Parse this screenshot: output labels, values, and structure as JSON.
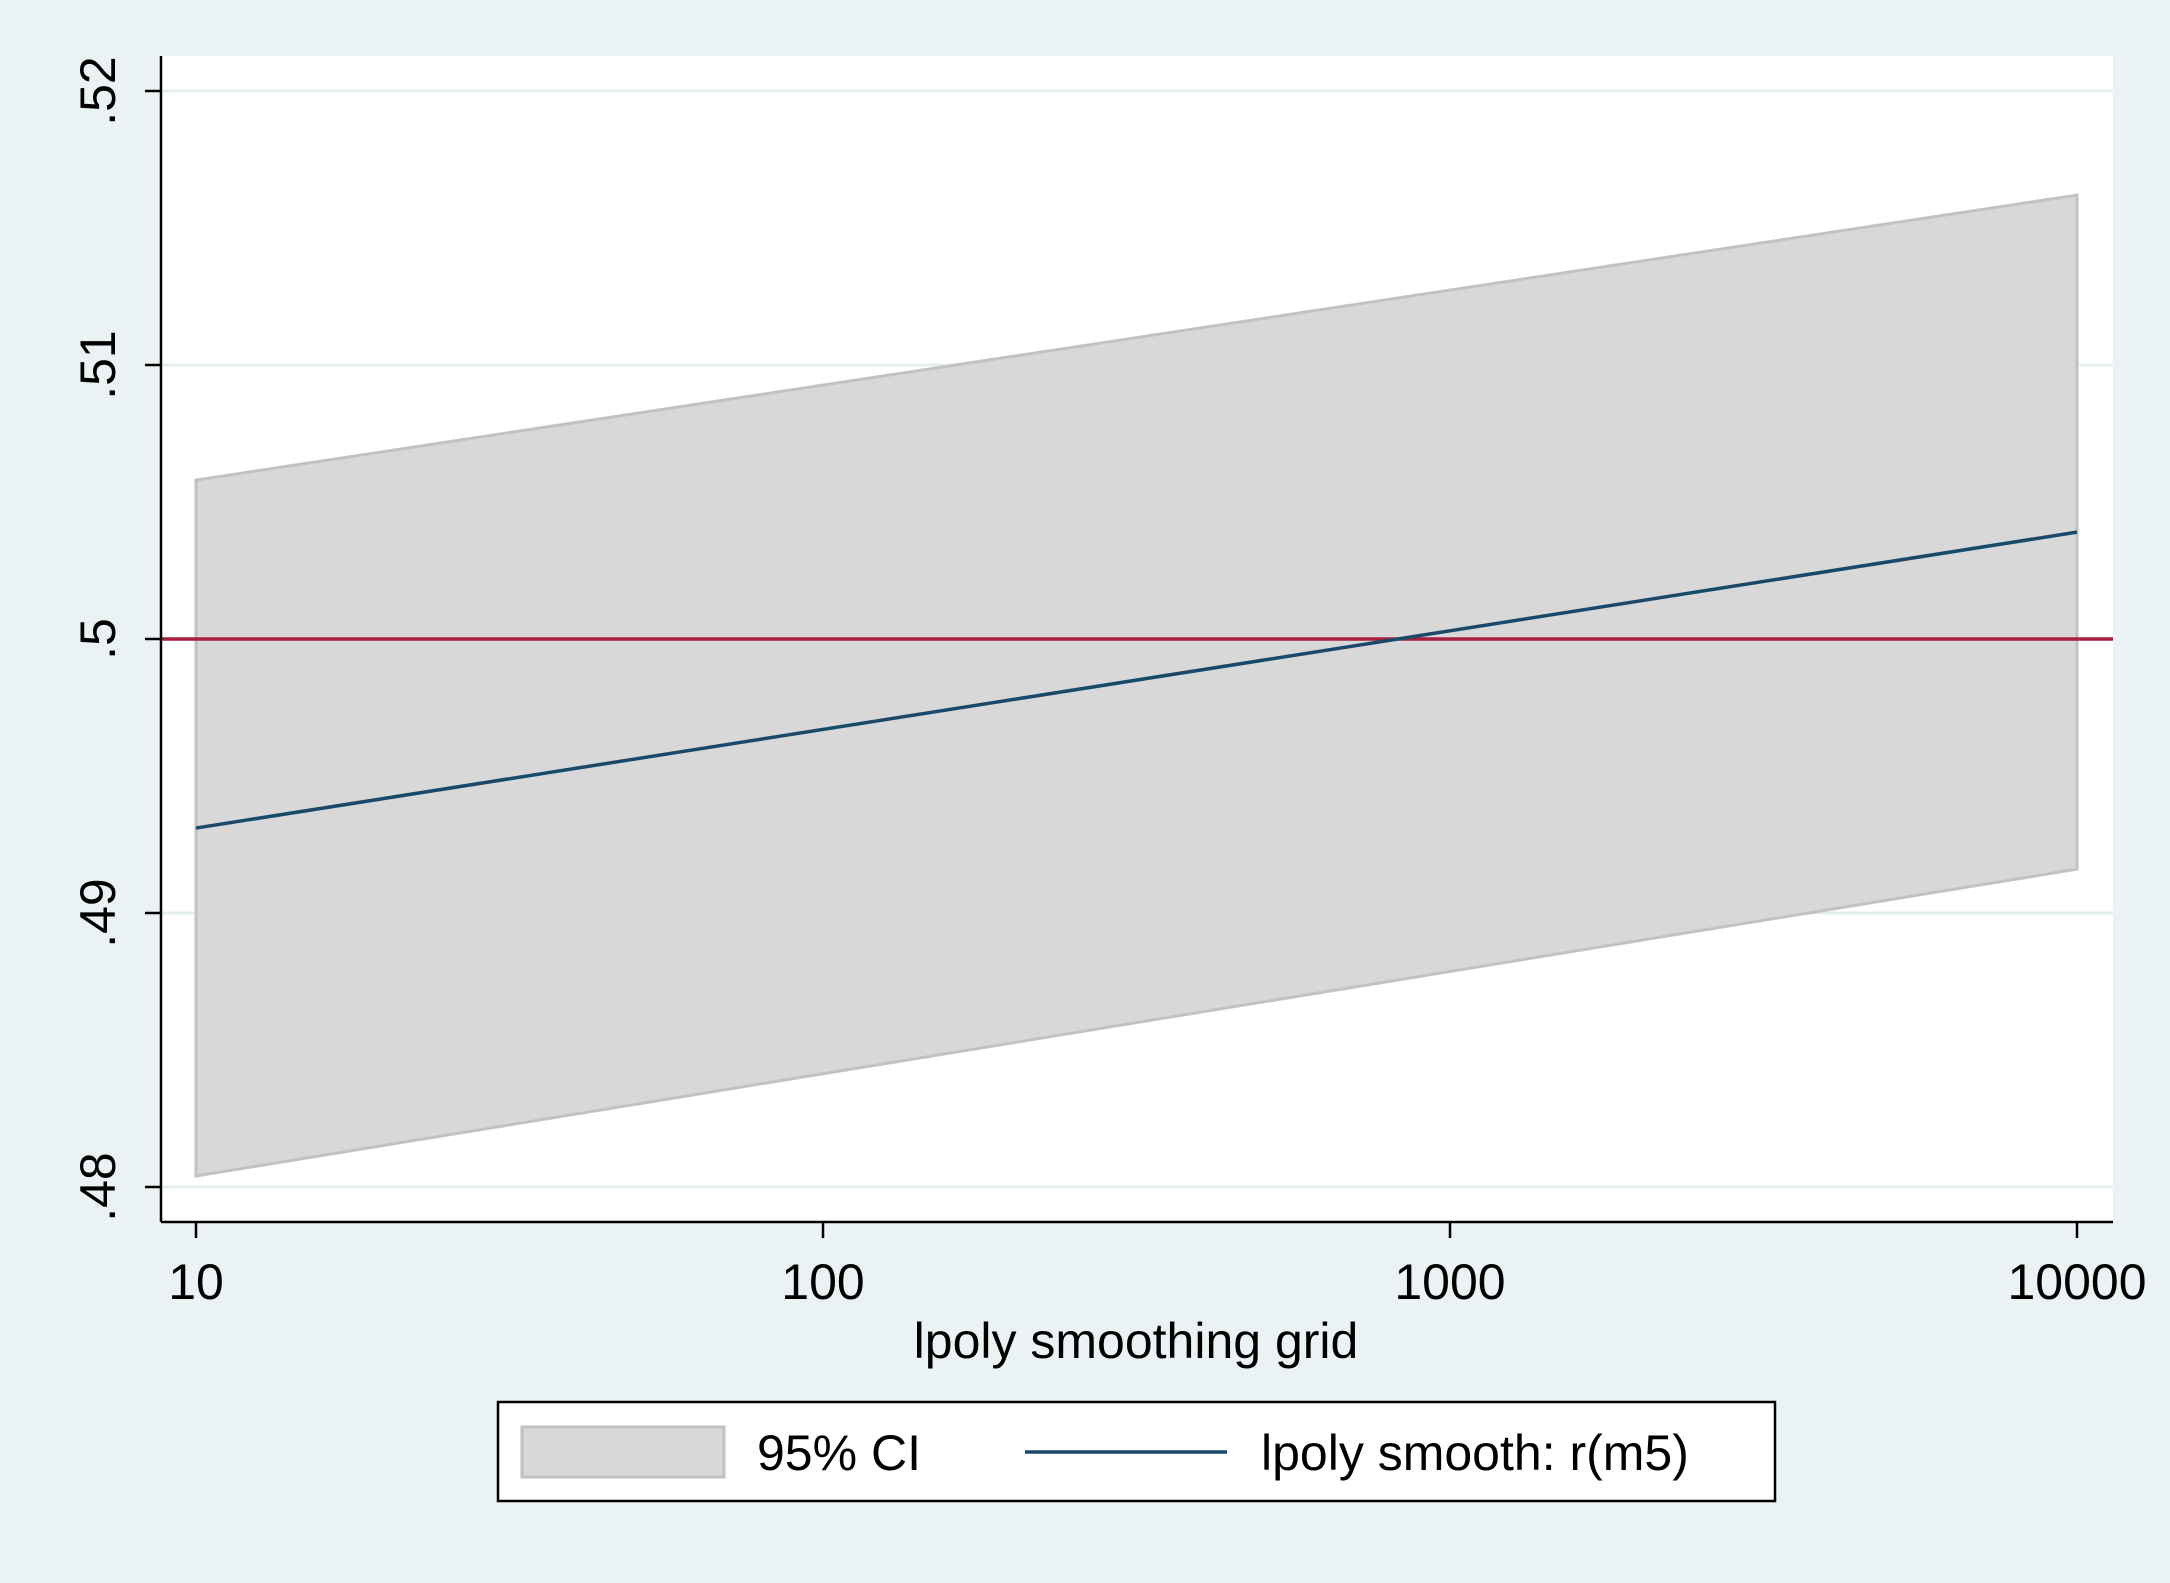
{
  "chart_data": {
    "type": "line",
    "xlabel": "lpoly smoothing grid",
    "ylabel": "",
    "xscale": "log",
    "xlim": [
      10,
      10000
    ],
    "ylim": [
      0.48,
      0.52
    ],
    "x_ticks": [
      10,
      100,
      1000,
      10000
    ],
    "x_tick_labels": [
      "10",
      "100",
      "1000",
      "10000"
    ],
    "y_ticks": [
      0.48,
      0.49,
      0.5,
      0.51,
      0.52
    ],
    "y_tick_labels": [
      ".48",
      ".49",
      ".5",
      ".51",
      ".52"
    ],
    "grid": "horizontal",
    "reference_line": {
      "y": 0.5,
      "color": "#a8203f"
    },
    "series": [
      {
        "name": "lpoly smooth: r(m5)",
        "kind": "line",
        "color": "#1a4a6b",
        "x": [
          10,
          10000
        ],
        "y": [
          0.4931,
          0.5039
        ]
      }
    ],
    "ci_band": {
      "name": "95% CI",
      "color": "#d8d8d8",
      "edge_color": "#c2c2c2",
      "x": [
        10,
        10000
      ],
      "lower": [
        0.4804,
        0.4916
      ],
      "upper": [
        0.5058,
        0.5162
      ]
    },
    "legend": {
      "position": "bottom",
      "entries": [
        "95% CI",
        "lpoly smooth: r(m5)"
      ]
    }
  }
}
